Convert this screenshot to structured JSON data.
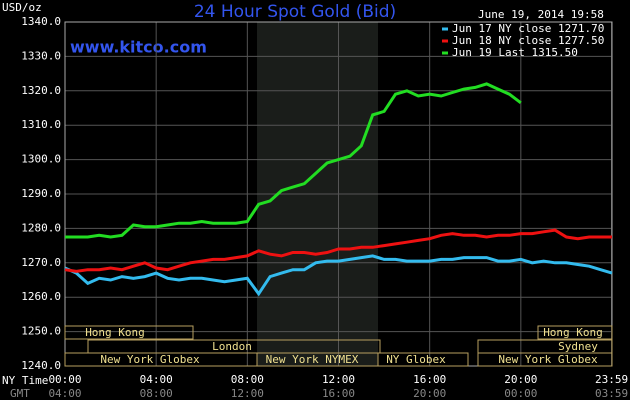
{
  "chart_data": {
    "type": "line",
    "title": "24 Hour Spot Gold (Bid)",
    "y_label": "USD/oz",
    "watermark": "www.kitco.com",
    "timestamp": "June 19, 2014 19:58",
    "x_label": "NY Time",
    "x2_label": "GMT",
    "x": [
      0,
      0.5,
      1,
      1.5,
      2,
      2.5,
      3,
      3.5,
      4,
      4.5,
      5,
      5.5,
      6,
      6.5,
      7,
      7.5,
      8,
      8.5,
      9,
      9.5,
      10,
      10.5,
      11,
      11.5,
      12,
      12.5,
      13,
      13.5,
      14,
      14.5,
      15,
      15.5,
      16,
      16.5,
      17,
      17.5,
      18,
      18.5,
      19,
      19.5,
      20,
      20.5,
      21,
      21.5,
      22,
      22.5,
      23,
      23.5,
      24
    ],
    "series": [
      {
        "name": "Jun 17 NY close 1271.70",
        "color": "#33bbee",
        "values": [
          1268.5,
          1267,
          1264,
          1265.5,
          1265,
          1266,
          1265.5,
          1266,
          1267,
          1265.5,
          1265,
          1265.5,
          1265.5,
          1265,
          1264.5,
          1265,
          1265.5,
          1261,
          1266,
          1267,
          1268,
          1268,
          1270,
          1270.5,
          1270.5,
          1271,
          1271.5,
          1272,
          1271,
          1271,
          1270.5,
          1270.5,
          1270.5,
          1271,
          1271,
          1271.5,
          1271.5,
          1271.5,
          1270.5,
          1270.5,
          1271,
          1270,
          1270.5,
          1270,
          1270,
          1269.5,
          1269,
          1268,
          1267
        ]
      },
      {
        "name": "Jun 18 NY close 1277.50",
        "color": "#ee1111",
        "values": [
          1268,
          1267.5,
          1268,
          1268,
          1268.5,
          1268,
          1269,
          1270,
          1268.5,
          1268,
          1269,
          1270,
          1270.5,
          1271,
          1271,
          1271.5,
          1272,
          1273.5,
          1272.5,
          1272,
          1273,
          1273,
          1272.5,
          1273,
          1274,
          1274,
          1274.5,
          1274.5,
          1275,
          1275.5,
          1276,
          1276.5,
          1277,
          1278,
          1278.5,
          1278,
          1278,
          1277.5,
          1278,
          1278,
          1278.5,
          1278.5,
          1279,
          1279.5,
          1277.5,
          1277,
          1277.5,
          1277.5,
          1277.5
        ]
      },
      {
        "name": "Jun 19 Last 1315.50",
        "color": "#22dd22",
        "values": [
          1277.5,
          1277.5,
          1277.5,
          1278,
          1277.5,
          1278,
          1281,
          1280.5,
          1280.5,
          1281,
          1281.5,
          1281.5,
          1282,
          1281.5,
          1281.5,
          1281.5,
          1282,
          1287,
          1288,
          1291,
          1292,
          1293,
          1296,
          1299,
          1300,
          1301,
          1304,
          1313,
          1314,
          1319,
          1320,
          1318.5,
          1319,
          1318.5,
          1319.5,
          1320.5,
          1321,
          1322,
          1320.5,
          1319,
          1316.5,
          null,
          null,
          null,
          null,
          null,
          null,
          null,
          null
        ]
      }
    ],
    "xlim": [
      0,
      24
    ],
    "xticks": [
      {
        "value": 0,
        "label": "00:00"
      },
      {
        "value": 4,
        "label": "04:00"
      },
      {
        "value": 8,
        "label": "08:00"
      },
      {
        "value": 12,
        "label": "12:00"
      },
      {
        "value": 16,
        "label": "16:00"
      },
      {
        "value": 20,
        "label": "20:00"
      },
      {
        "value": 23.98,
        "label": "23:59"
      }
    ],
    "x2ticks": [
      {
        "value": 0,
        "label": "04:00"
      },
      {
        "value": 4,
        "label": "08:00"
      },
      {
        "value": 8,
        "label": "12:00"
      },
      {
        "value": 12,
        "label": "16:00"
      },
      {
        "value": 16,
        "label": "20:00"
      },
      {
        "value": 20,
        "label": "00:00"
      },
      {
        "value": 23.98,
        "label": "03:59"
      }
    ],
    "ylim": [
      1240,
      1340
    ],
    "yticks": [
      {
        "value": 1240,
        "label": "1240.0"
      },
      {
        "value": 1250,
        "label": "1250.0"
      },
      {
        "value": 1260,
        "label": "1260.0"
      },
      {
        "value": 1270,
        "label": "1270.0"
      },
      {
        "value": 1280,
        "label": "1280.0"
      },
      {
        "value": 1290,
        "label": "1290.0"
      },
      {
        "value": 1300,
        "label": "1300.0"
      },
      {
        "value": 1310,
        "label": "1310.0"
      },
      {
        "value": 1320,
        "label": "1320.0"
      },
      {
        "value": 1330,
        "label": "1330.0"
      },
      {
        "value": 1340,
        "label": "1340.0"
      }
    ],
    "grid": true,
    "sessions": [
      "Hong Kong",
      "London",
      "New York Globex",
      "New York NYMEX",
      "NY Globex",
      "Hong Kong",
      "Sydney",
      "New York Globex"
    ]
  }
}
